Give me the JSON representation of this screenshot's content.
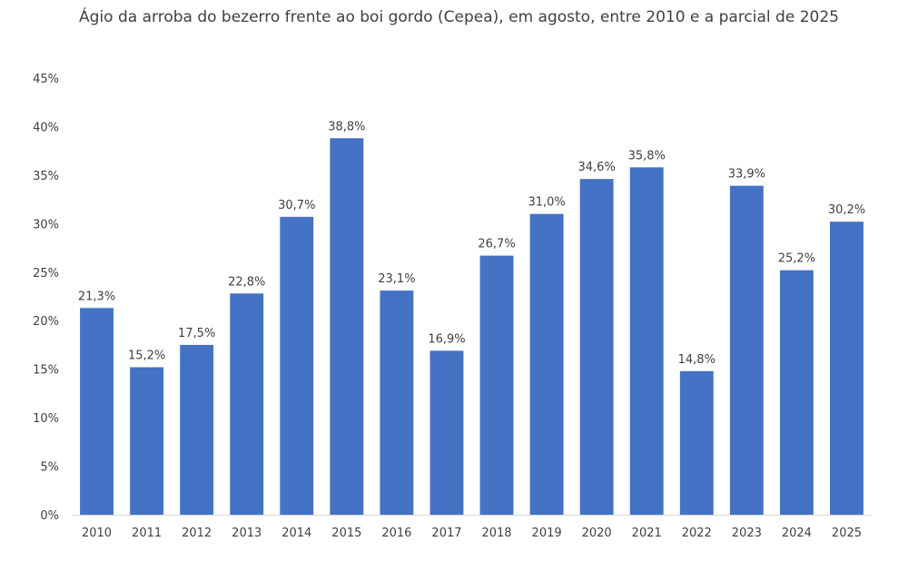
{
  "chart_data": {
    "type": "bar",
    "title": "Ágio da arroba do bezerro frente ao boi gordo (Cepea),  em agosto, entre 2010 e a parcial de 2025",
    "categories": [
      "2010",
      "2011",
      "2012",
      "2013",
      "2014",
      "2015",
      "2016",
      "2017",
      "2018",
      "2019",
      "2020",
      "2021",
      "2022",
      "2023",
      "2024",
      "2025"
    ],
    "values": [
      21.3,
      15.2,
      17.5,
      22.8,
      30.7,
      38.8,
      23.1,
      16.9,
      26.7,
      31.0,
      34.6,
      35.8,
      14.8,
      33.9,
      25.2,
      30.2
    ],
    "data_labels": [
      "21,3%",
      "15,2%",
      "17,5%",
      "22,8%",
      "30,7%",
      "38,8%",
      "23,1%",
      "16,9%",
      "26,7%",
      "31,0%",
      "34,6%",
      "35,8%",
      "14,8%",
      "33,9%",
      "25,2%",
      "30,2%"
    ],
    "y_ticks": [
      0,
      5,
      10,
      15,
      20,
      25,
      30,
      35,
      40,
      45
    ],
    "y_tick_labels": [
      "0%",
      "5%",
      "10%",
      "15%",
      "20%",
      "25%",
      "30%",
      "35%",
      "40%",
      "45%"
    ],
    "ylim": [
      0,
      45
    ],
    "xlabel": "",
    "ylabel": "",
    "grid": false,
    "legend": "none",
    "bar_color": "#4472C4",
    "axis_color": "#D9D9D9"
  }
}
